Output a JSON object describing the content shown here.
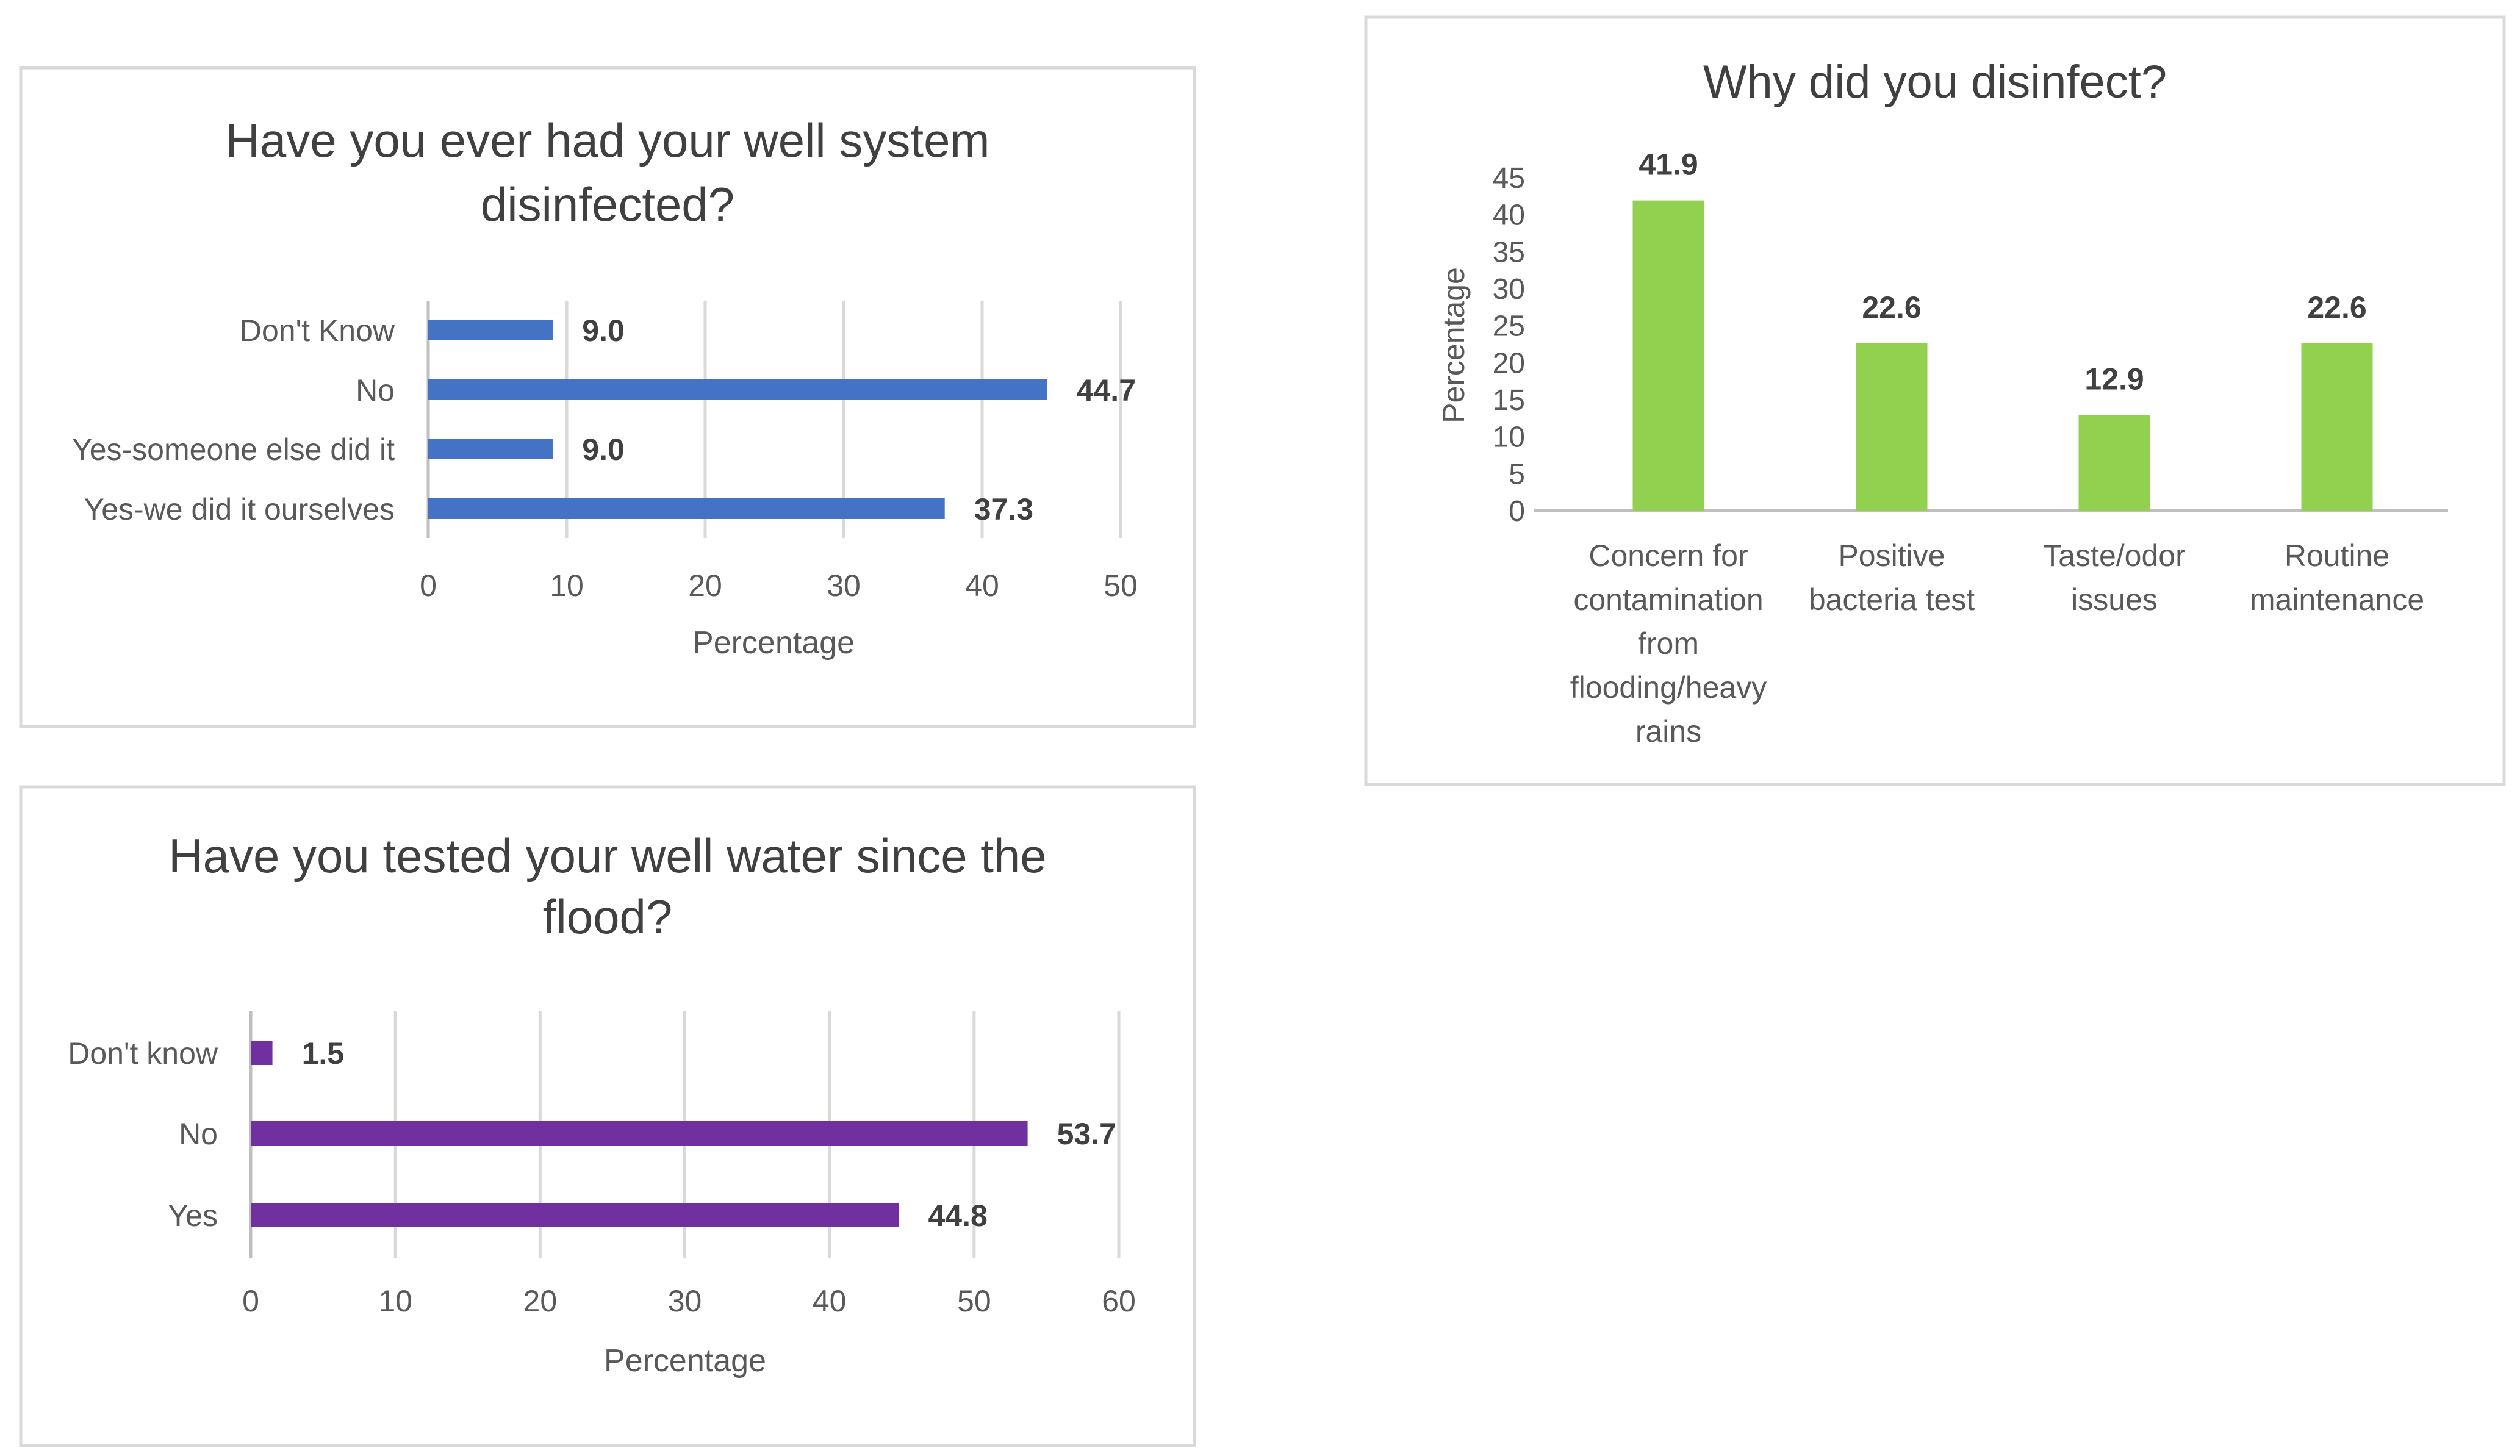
{
  "chart_data": [
    {
      "id": "well_disinfected",
      "type": "bar",
      "orientation": "horizontal",
      "title": [
        "Have you ever had your well system",
        "disinfected?"
      ],
      "xlabel": "Percentage",
      "ylabel": "",
      "xlim": [
        0,
        50
      ],
      "tick_step": 10,
      "ticks": [
        "0",
        "10",
        "20",
        "30",
        "40",
        "50"
      ],
      "grid": true,
      "legend": false,
      "color": "#4472C4",
      "categories": [
        "Don't Know",
        "No",
        "Yes-someone else did it",
        "Yes-we did it ourselves"
      ],
      "values": [
        9.0,
        44.7,
        9.0,
        37.3
      ],
      "data_labels": [
        "9.0",
        "44.7",
        "9.0",
        "37.3"
      ]
    },
    {
      "id": "why_disinfect",
      "type": "bar",
      "orientation": "vertical",
      "title": [
        "Why did you disinfect?"
      ],
      "xlabel": "",
      "ylabel": "Percentage",
      "ylim": [
        0,
        45
      ],
      "tick_step": 5,
      "ticks": [
        "0",
        "5",
        "10",
        "15",
        "20",
        "25",
        "30",
        "35",
        "40",
        "45"
      ],
      "grid": false,
      "legend": false,
      "color": "#92D050",
      "categories": [
        [
          "Concern for",
          "contamination",
          "from",
          "flooding/heavy",
          "rains"
        ],
        [
          "Positive",
          "bacteria test"
        ],
        [
          "Taste/odor",
          "issues"
        ],
        [
          "Routine",
          "maintenance"
        ]
      ],
      "values": [
        41.9,
        22.6,
        12.9,
        22.6
      ],
      "data_labels": [
        "41.9",
        "22.6",
        "12.9",
        "22.6"
      ]
    },
    {
      "id": "water_tested",
      "type": "bar",
      "orientation": "horizontal",
      "title": [
        "Have you tested your well water since the",
        "flood?"
      ],
      "xlabel": "Percentage",
      "ylabel": "",
      "xlim": [
        0,
        60
      ],
      "tick_step": 10,
      "ticks": [
        "0",
        "10",
        "20",
        "30",
        "40",
        "50",
        "60"
      ],
      "grid": true,
      "legend": false,
      "color": "#7030A0",
      "categories": [
        "Don't know",
        "No",
        "Yes"
      ],
      "values": [
        1.5,
        53.7,
        44.8
      ],
      "data_labels": [
        "1.5",
        "53.7",
        "44.8"
      ]
    }
  ],
  "style": {
    "text_color": "#595959",
    "title_color": "#404040",
    "label_color": "#404040",
    "grid_color": "#D9D9D9",
    "axis_color": "#BFBFBF",
    "border_color": "#D9D9D9"
  }
}
